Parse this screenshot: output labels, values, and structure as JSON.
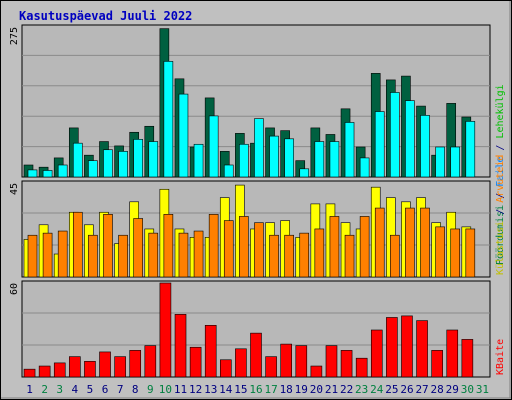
{
  "title": "Kasutuspäevad Juuli 2022",
  "colors": {
    "page_bg": "#c0c0c0",
    "plot_bg": "#b8b8b8",
    "grid": "#8a8a8a",
    "title": "#0000c0",
    "weekday_label": "#000080",
    "weekend_label": "#008040",
    "pages": "#006040",
    "hits": "#00ffff",
    "files": "#0080ff",
    "visits": "#ffff00",
    "sites": "#ff8000",
    "kbytes": "#ff0000"
  },
  "right_labels": {
    "top": [
      "Pöördumisi",
      "Faile",
      "Lehekülgi"
    ],
    "top_colors": [
      "#008040",
      "#0080ff",
      "#00c000"
    ],
    "middle": [
      "Külastusi",
      "Arvuteid"
    ],
    "middle_colors": [
      "#c0c000",
      "#ff8000"
    ],
    "bottom": [
      "KBaite"
    ],
    "bottom_colors": [
      "#ff0000"
    ],
    "separator": " / "
  },
  "chart_data": [
    {
      "type": "bar",
      "panel": "hits-files-pages",
      "y_max_label": "275",
      "ylim": [
        0,
        275
      ],
      "categories": [
        "1",
        "2",
        "3",
        "4",
        "5",
        "6",
        "7",
        "8",
        "9",
        "10",
        "11",
        "12",
        "13",
        "14",
        "15",
        "16",
        "17",
        "18",
        "19",
        "20",
        "21",
        "22",
        "23",
        "24",
        "25",
        "26",
        "27",
        "28",
        "29",
        "30",
        "31"
      ],
      "weekend_days": [
        "2",
        "3",
        "9",
        "10",
        "16",
        "17",
        "23",
        "24",
        "30",
        "31"
      ],
      "series": [
        {
          "name": "Pöördumisi",
          "color": "#006040",
          "values": [
            22,
            18,
            35,
            90,
            40,
            65,
            57,
            82,
            93,
            272,
            180,
            55,
            145,
            47,
            80,
            62,
            90,
            85,
            30,
            90,
            78,
            125,
            55,
            190,
            178,
            185,
            130,
            40,
            135,
            110,
            0
          ]
        },
        {
          "name": "Faile",
          "color": "#00ffff",
          "values": [
            13,
            12,
            22,
            62,
            30,
            50,
            47,
            69,
            65,
            212,
            152,
            60,
            112,
            22,
            60,
            107,
            75,
            70,
            15,
            65,
            65,
            100,
            35,
            120,
            155,
            140,
            113,
            55,
            55,
            102,
            0
          ]
        },
        {
          "name": "Lehekülgi",
          "color": "#0080ff",
          "values": [
            0,
            0,
            0,
            0,
            0,
            0,
            0,
            0,
            0,
            0,
            0,
            0,
            0,
            0,
            0,
            0,
            0,
            0,
            0,
            0,
            0,
            0,
            0,
            0,
            0,
            0,
            0,
            0,
            0,
            0,
            0
          ]
        }
      ]
    },
    {
      "type": "bar",
      "panel": "visits-sites",
      "y_max_label": "45",
      "ylim": [
        0,
        45
      ],
      "categories": [
        "1",
        "2",
        "3",
        "4",
        "5",
        "6",
        "7",
        "8",
        "9",
        "10",
        "11",
        "12",
        "13",
        "14",
        "15",
        "16",
        "17",
        "18",
        "19",
        "20",
        "21",
        "22",
        "23",
        "24",
        "25",
        "26",
        "27",
        "28",
        "29",
        "30",
        "31"
      ],
      "series": [
        {
          "name": "Külastusi",
          "color": "#ffff00",
          "values": [
            18,
            25,
            11,
            31,
            25,
            31,
            16,
            36,
            23,
            42,
            23,
            19,
            19,
            38,
            44,
            23,
            26,
            27,
            19,
            35,
            35,
            26,
            23,
            43,
            38,
            36,
            38,
            26,
            31,
            24,
            0
          ]
        },
        {
          "name": "Arvuteid",
          "color": "#ff8000",
          "values": [
            20,
            21,
            22,
            31,
            20,
            30,
            20,
            28,
            21,
            30,
            21,
            22,
            30,
            27,
            29,
            26,
            20,
            20,
            21,
            23,
            29,
            20,
            29,
            33,
            20,
            33,
            33,
            24,
            23,
            23,
            0
          ]
        }
      ]
    },
    {
      "type": "bar",
      "panel": "kbytes",
      "y_max_label": "60",
      "ylim": [
        0,
        60
      ],
      "categories": [
        "1",
        "2",
        "3",
        "4",
        "5",
        "6",
        "7",
        "8",
        "9",
        "10",
        "11",
        "12",
        "13",
        "14",
        "15",
        "16",
        "17",
        "18",
        "19",
        "20",
        "21",
        "22",
        "23",
        "24",
        "25",
        "26",
        "27",
        "28",
        "29",
        "30",
        "31"
      ],
      "series": [
        {
          "name": "KBaite",
          "color": "#ff0000",
          "values": [
            5,
            7,
            9,
            13,
            10,
            16,
            13,
            17,
            20,
            60,
            40,
            19,
            33,
            11,
            18,
            28,
            13,
            21,
            20,
            7,
            20,
            17,
            12,
            30,
            38,
            39,
            36,
            17,
            30,
            24,
            0
          ]
        }
      ]
    }
  ]
}
